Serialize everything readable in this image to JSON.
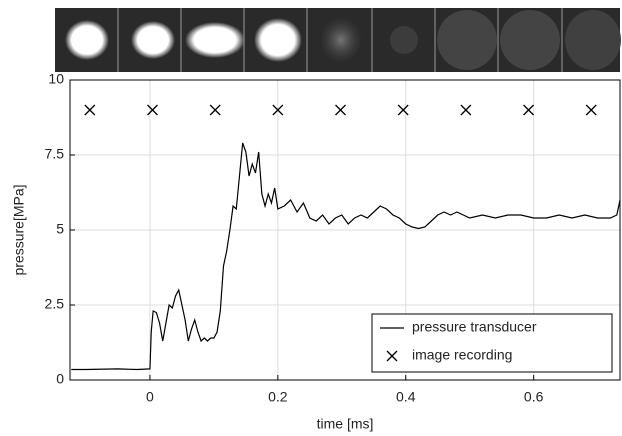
{
  "chart_data": {
    "type": "line",
    "xlabel": "time [ms]",
    "ylabel": "pressure[MPa]",
    "xlim": [
      -0.125,
      0.735
    ],
    "ylim": [
      0,
      10
    ],
    "xticks": [
      0,
      0.2,
      0.4,
      0.6
    ],
    "yticks": [
      0,
      2.5,
      5,
      7.5,
      10
    ],
    "grid": true,
    "legend": "lower right",
    "series": [
      {
        "name": "pressure transducer",
        "color": "#000000",
        "x": [
          -0.123,
          -0.1,
          -0.05,
          -0.02,
          0.0,
          0.002,
          0.005,
          0.01,
          0.015,
          0.02,
          0.025,
          0.03,
          0.035,
          0.04,
          0.045,
          0.05,
          0.055,
          0.06,
          0.065,
          0.07,
          0.075,
          0.08,
          0.085,
          0.09,
          0.095,
          0.1,
          0.105,
          0.11,
          0.115,
          0.12,
          0.125,
          0.13,
          0.135,
          0.14,
          0.145,
          0.15,
          0.155,
          0.16,
          0.165,
          0.17,
          0.175,
          0.18,
          0.185,
          0.19,
          0.195,
          0.2,
          0.21,
          0.22,
          0.23,
          0.24,
          0.25,
          0.26,
          0.27,
          0.28,
          0.29,
          0.3,
          0.31,
          0.32,
          0.33,
          0.34,
          0.35,
          0.36,
          0.37,
          0.38,
          0.39,
          0.4,
          0.41,
          0.42,
          0.43,
          0.44,
          0.45,
          0.46,
          0.47,
          0.48,
          0.49,
          0.5,
          0.52,
          0.54,
          0.56,
          0.58,
          0.6,
          0.62,
          0.64,
          0.66,
          0.68,
          0.7,
          0.72,
          0.73,
          0.735
        ],
        "values": [
          0.35,
          0.35,
          0.37,
          0.35,
          0.37,
          1.6,
          2.3,
          2.25,
          1.9,
          1.3,
          1.9,
          2.5,
          2.4,
          2.8,
          3.0,
          2.5,
          2.0,
          1.3,
          1.7,
          2.0,
          1.6,
          1.3,
          1.4,
          1.3,
          1.4,
          1.4,
          1.6,
          2.3,
          3.8,
          4.3,
          5.0,
          5.8,
          5.7,
          6.8,
          7.9,
          7.6,
          6.8,
          7.2,
          6.9,
          7.6,
          6.2,
          5.8,
          6.2,
          5.9,
          6.4,
          5.7,
          5.8,
          6.0,
          5.6,
          5.9,
          5.4,
          5.3,
          5.5,
          5.2,
          5.4,
          5.5,
          5.2,
          5.4,
          5.5,
          5.4,
          5.6,
          5.8,
          5.7,
          5.5,
          5.4,
          5.2,
          5.1,
          5.05,
          5.1,
          5.3,
          5.5,
          5.6,
          5.5,
          5.6,
          5.5,
          5.4,
          5.5,
          5.4,
          5.5,
          5.5,
          5.4,
          5.4,
          5.5,
          5.4,
          5.5,
          5.4,
          5.4,
          5.5,
          6.0
        ]
      },
      {
        "name": "image recording",
        "color": "#000000",
        "marker": "x",
        "x": [
          -0.094,
          0.004,
          0.102,
          0.2,
          0.298,
          0.396,
          0.494,
          0.592,
          0.69
        ],
        "values": [
          9,
          9,
          9,
          9,
          9,
          9,
          9,
          9,
          9
        ]
      }
    ]
  }
}
